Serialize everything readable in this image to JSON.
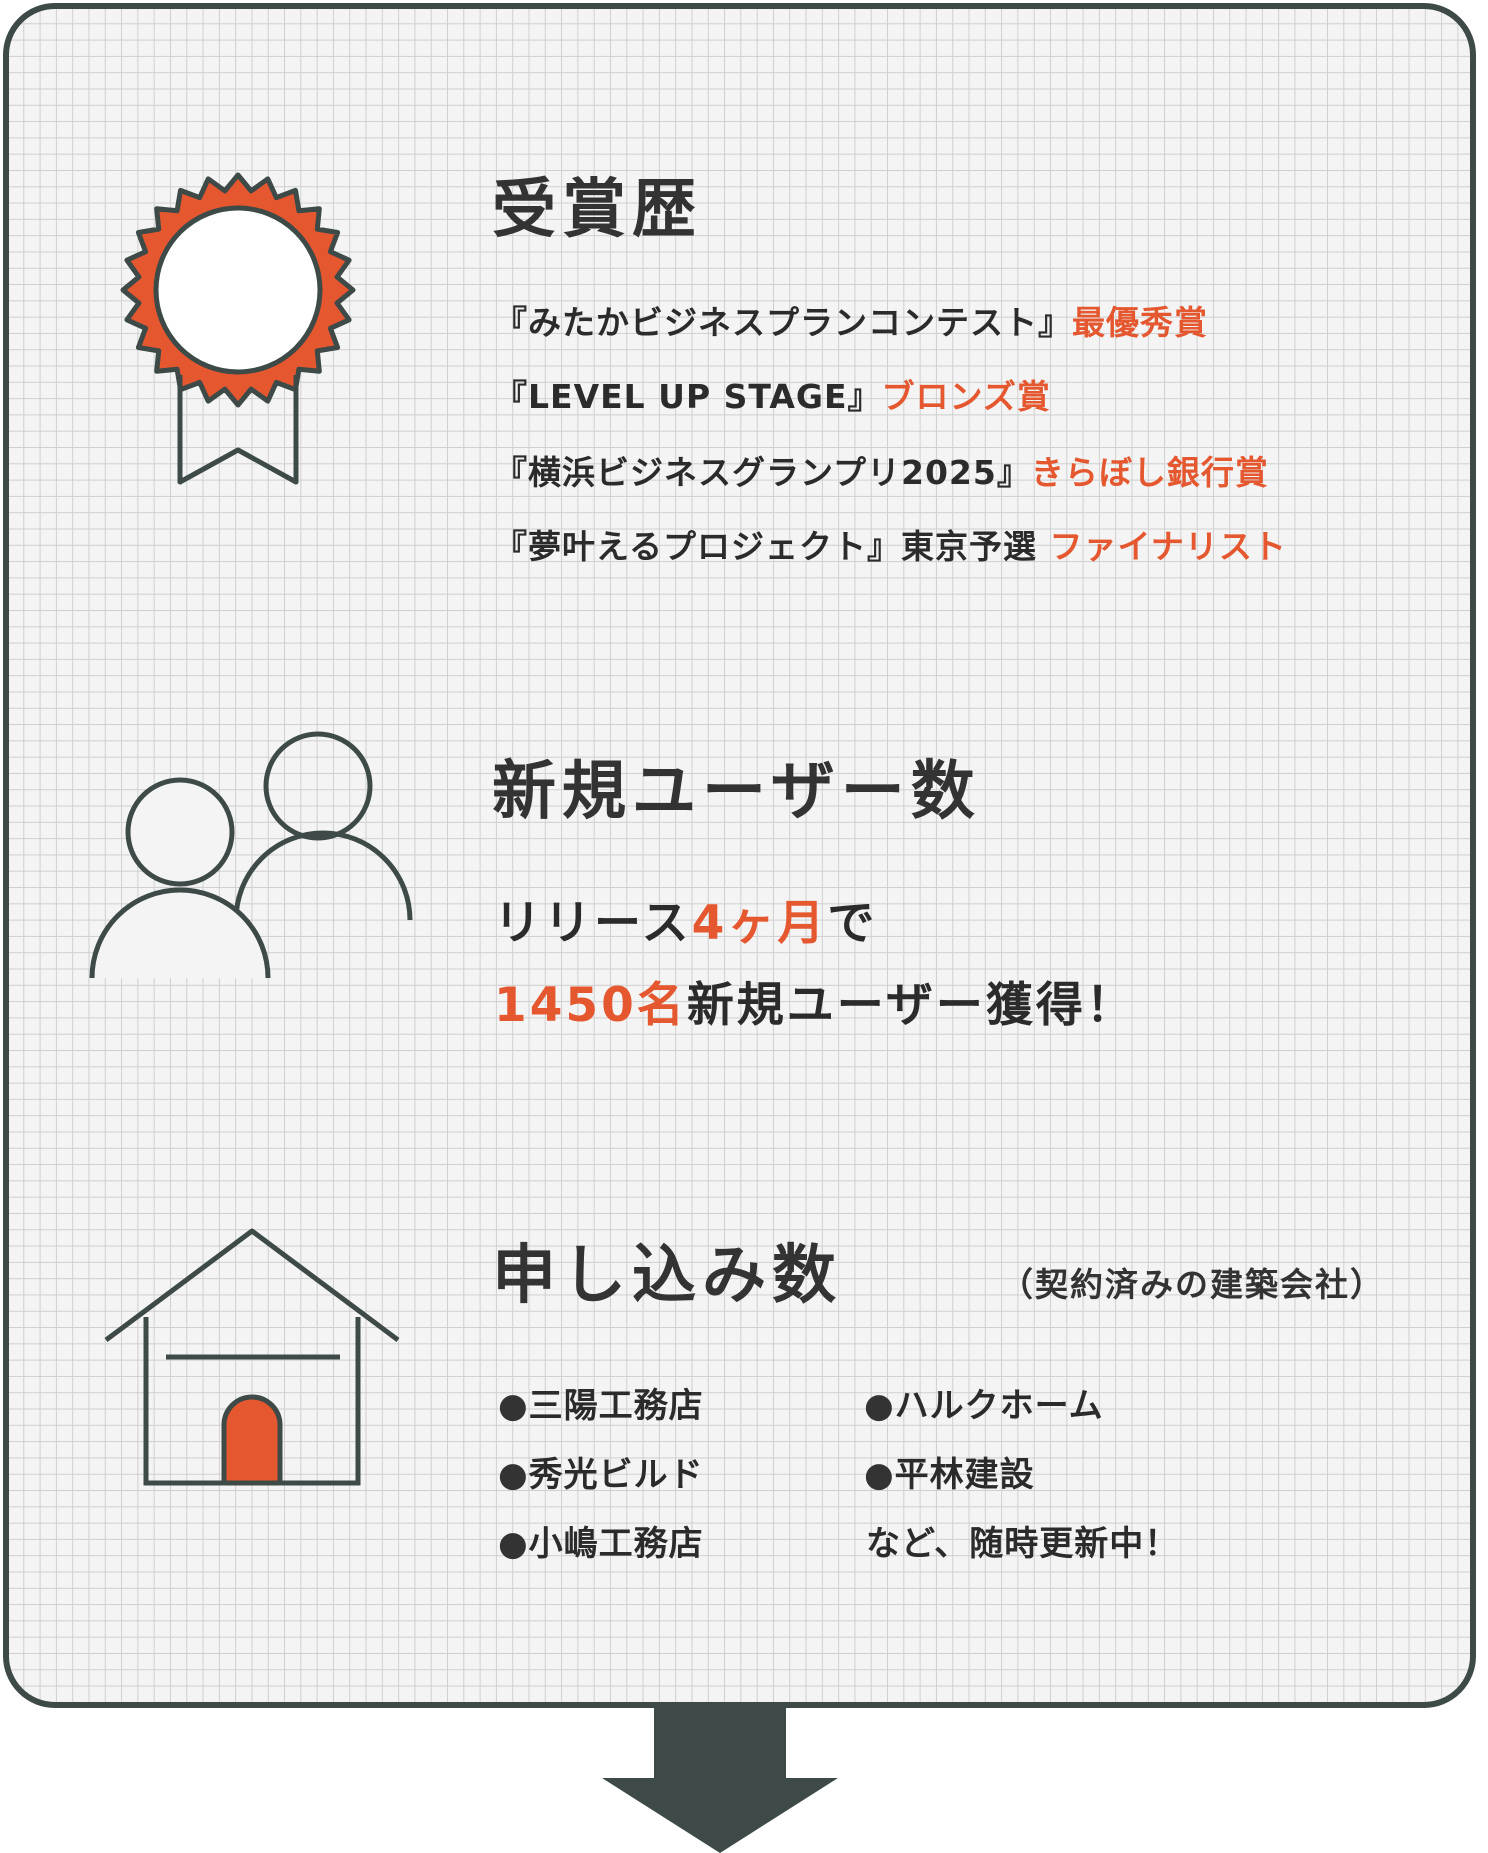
{
  "colors": {
    "accent": "#e5572f",
    "dark": "#3d4a48",
    "grid": "#cfcfcf",
    "panel": "#f4f4f4"
  },
  "awards": {
    "title": "受賞歴",
    "icon": "award-rosette-icon",
    "items": [
      {
        "name": "『みたかビジネスプランコンテスト』",
        "prize": "最優秀賞"
      },
      {
        "name": "『LEVEL UP STAGE』",
        "prize": "ブロンズ賞"
      },
      {
        "name": "『横浜ビジネスグランプリ2025』",
        "prize": "きらぼし銀行賞"
      },
      {
        "name": "『夢叶えるプロジェクト』東京予選 ",
        "prize": "ファイナリスト"
      }
    ]
  },
  "users": {
    "title": "新規ユーザー数",
    "icon": "users-icon",
    "line1": {
      "prefix": "リリース",
      "highlight": "4ヶ月",
      "suffix": "で"
    },
    "line2": {
      "highlight": "1450名",
      "suffix": "新規ユーザー獲得！"
    }
  },
  "applications": {
    "title": "申し込み数",
    "subtitle": "（契約済みの建築会社）",
    "icon": "house-icon",
    "bullet": "●",
    "companies": [
      "三陽工務店",
      "秀光ビルド",
      "小嶋工務店",
      "ハルクホーム",
      "平林建設"
    ],
    "footer": "など、随時更新中！"
  },
  "next": {
    "icon": "down-arrow-icon"
  }
}
